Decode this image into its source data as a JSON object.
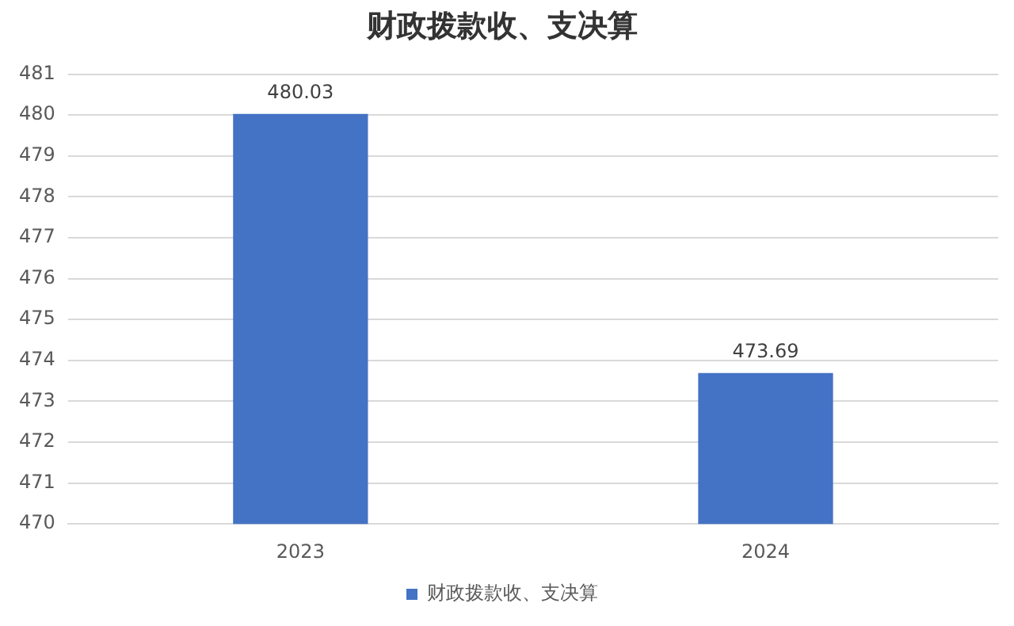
{
  "chart_data": {
    "type": "bar",
    "title": "财政拨款收、支决算",
    "categories": [
      "2023",
      "2024"
    ],
    "series": [
      {
        "name": "财政拨款收、支决算",
        "color": "#4472c4",
        "values": [
          480.03,
          473.69
        ]
      }
    ],
    "ylim": [
      470,
      481
    ],
    "yticks": [
      470,
      471,
      472,
      473,
      474,
      475,
      476,
      477,
      478,
      479,
      480,
      481
    ],
    "grid": "y",
    "legend": "bottom",
    "data_labels": true
  }
}
